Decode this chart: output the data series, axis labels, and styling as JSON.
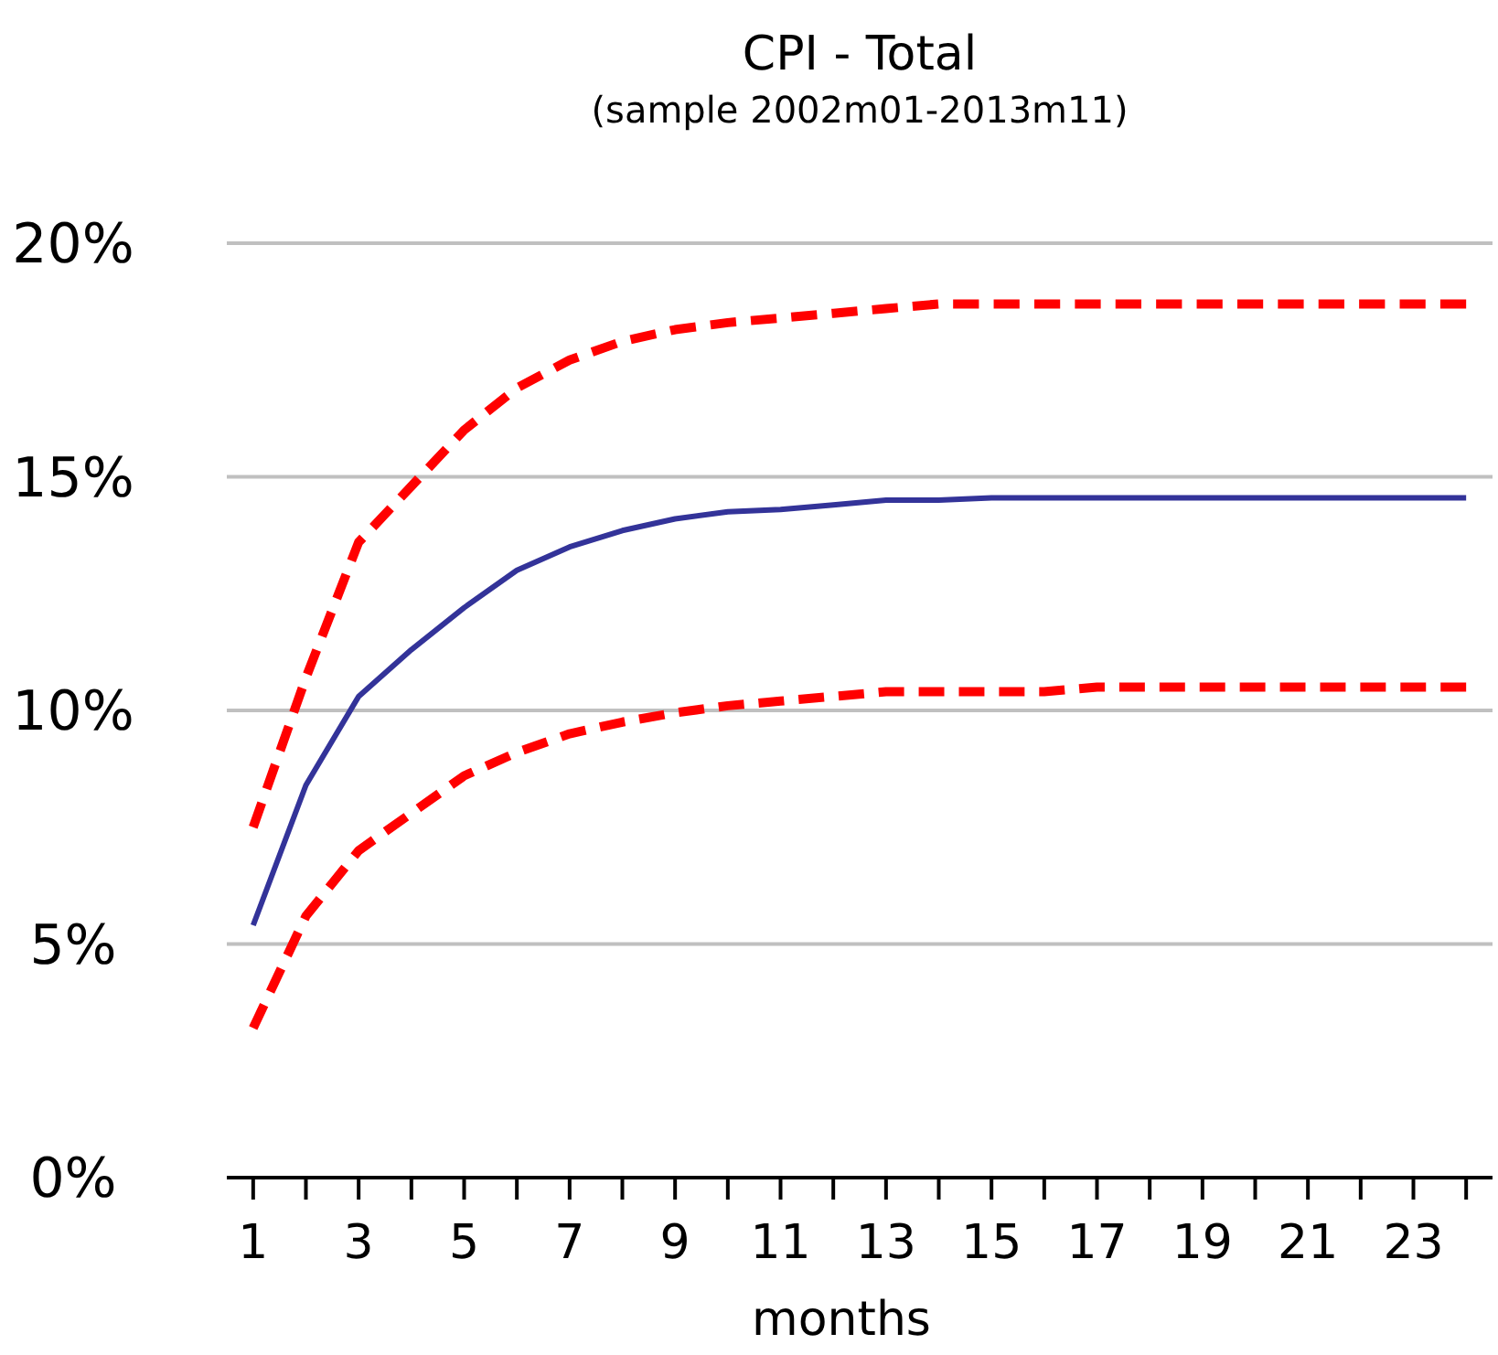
{
  "chart_data": {
    "type": "line",
    "title": "CPI - Total",
    "subtitle": "(sample 2002m01-2013m11)",
    "xlabel": "months",
    "x": [
      1,
      2,
      3,
      4,
      5,
      6,
      7,
      8,
      9,
      10,
      11,
      12,
      13,
      14,
      15,
      16,
      17,
      18,
      19,
      20,
      21,
      22,
      23,
      24
    ],
    "xlim": [
      0.5,
      24.5
    ],
    "xticks": [
      1,
      {
        "value": 2,
        "label": null
      },
      3,
      {
        "value": 4,
        "label": null
      },
      5,
      {
        "value": 6,
        "label": null
      },
      7,
      {
        "value": 8,
        "label": null
      },
      9,
      {
        "value": 10,
        "label": null
      },
      11,
      {
        "value": 12,
        "label": null
      },
      13,
      {
        "value": 14,
        "label": null
      },
      15,
      {
        "value": 16,
        "label": null
      },
      17,
      {
        "value": 18,
        "label": null
      },
      19,
      {
        "value": 20,
        "label": null
      },
      21,
      {
        "value": 22,
        "label": null
      },
      23,
      {
        "value": 24,
        "label": null
      }
    ],
    "ylim": [
      0,
      20
    ],
    "yticks": [
      {
        "value": 0,
        "label": "0%"
      },
      {
        "value": 5,
        "label": "5%"
      },
      {
        "value": 10,
        "label": "10%"
      },
      {
        "value": 15,
        "label": "15%"
      },
      {
        "value": 20,
        "label": "20%"
      }
    ],
    "grid": "y",
    "marker": "none",
    "series": [
      {
        "color": "#ff0000",
        "line_style": "dashed",
        "values": [
          7.5,
          10.7,
          13.6,
          14.8,
          16.0,
          16.9,
          17.5,
          17.9,
          18.15,
          18.3,
          18.4,
          18.5,
          18.6,
          18.7,
          18.7,
          18.7,
          18.7,
          18.7,
          18.7,
          18.7,
          18.7,
          18.7,
          18.7,
          18.7
        ]
      },
      {
        "color": "#333399",
        "line_style": "solid",
        "values": [
          5.4,
          8.4,
          10.3,
          11.3,
          12.2,
          13.0,
          13.5,
          13.85,
          14.1,
          14.25,
          14.3,
          14.4,
          14.5,
          14.5,
          14.55,
          14.55,
          14.55,
          14.55,
          14.55,
          14.55,
          14.55,
          14.55,
          14.55,
          14.55
        ]
      },
      {
        "color": "#ff0000",
        "line_style": "dashed",
        "values": [
          3.2,
          5.6,
          7.0,
          7.8,
          8.6,
          9.1,
          9.5,
          9.75,
          9.95,
          10.1,
          10.2,
          10.3,
          10.4,
          10.4,
          10.4,
          10.4,
          10.5,
          10.5,
          10.5,
          10.5,
          10.5,
          10.5,
          10.5,
          10.5
        ]
      }
    ]
  }
}
